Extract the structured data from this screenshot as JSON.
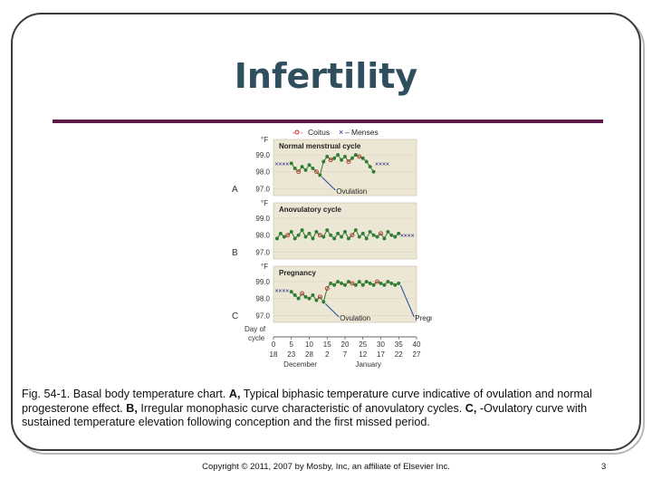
{
  "slide": {
    "title": "Infertility",
    "caption": {
      "prefix": "Fig. 54-1. Basal body temperature chart.",
      "a_label": "A,",
      "a_text": "Typical biphasic temperature curve indicative of ovulation and normal progesterone effect.",
      "b_label": "B,",
      "b_text": "Irregular monophasic curve characteristic of anovulatory cycles.",
      "c_label": "C,",
      "c_text": "-Ovulatory curve with sustained temperature elevation following conception and the first missed period."
    },
    "copyright": "Copyright © 2011, 2007 by Mosby, Inc, an affiliate of Elsevier Inc.",
    "page_number": "3",
    "colors": {
      "title": "#2f4f5f",
      "rule": "#5b1a48",
      "panel": "#ece6d4",
      "line": "#2e7d32",
      "coitus": "#c62828",
      "menses": "#1a237e",
      "arrow": "#1f4e9a"
    }
  },
  "chart_data": {
    "type": "line",
    "legend": {
      "coitus": "Coitus",
      "menses": "Menses",
      "coitus_symbol": "o",
      "menses_symbol": "×"
    },
    "ylabel": "°F",
    "yticks": [
      "99.0",
      "98.0",
      "97.0"
    ],
    "ylim": [
      96.8,
      99.7
    ],
    "xlim": [
      0,
      40
    ],
    "x_axis_label_line1": "Day of",
    "x_axis_label_line2": "cycle",
    "xticks": [
      "0",
      "5",
      "10",
      "15",
      "20",
      "25",
      "30",
      "35",
      "40"
    ],
    "date_ticks": [
      "18",
      "23",
      "28",
      "2",
      "7",
      "12",
      "17",
      "22",
      "27"
    ],
    "months": [
      "December",
      "January"
    ],
    "panels": [
      {
        "letter": "A",
        "title": "Normal menstrual cycle",
        "annotations": [
          {
            "text": "Ovulation",
            "day": 13
          }
        ],
        "menses_marks": [
          {
            "day_start": 1,
            "day_end": 4,
            "temp": 98.5
          },
          {
            "day_start": 29,
            "day_end": 32,
            "temp": 98.5
          }
        ],
        "coitus_days": [
          7,
          12,
          16,
          21,
          24
        ],
        "days": [
          5,
          6,
          7,
          8,
          9,
          10,
          11,
          12,
          13,
          14,
          15,
          16,
          17,
          18,
          19,
          20,
          21,
          22,
          23,
          24,
          25,
          26,
          27,
          28
        ],
        "temps": [
          98.5,
          98.2,
          98.0,
          98.3,
          98.1,
          98.4,
          98.2,
          98.0,
          97.8,
          98.6,
          98.9,
          98.7,
          98.8,
          99.0,
          98.7,
          98.9,
          98.6,
          98.8,
          99.0,
          98.9,
          98.8,
          98.6,
          98.3,
          98.0
        ]
      },
      {
        "letter": "B",
        "title": "Anovulatory cycle",
        "annotations": [],
        "menses_marks": [
          {
            "day_start": 36,
            "day_end": 39,
            "temp": 98.0
          }
        ],
        "coitus_days": [
          4,
          13,
          22,
          30
        ],
        "days": [
          1,
          2,
          3,
          4,
          5,
          6,
          7,
          8,
          9,
          10,
          11,
          12,
          13,
          14,
          15,
          16,
          17,
          18,
          19,
          20,
          21,
          22,
          23,
          24,
          25,
          26,
          27,
          28,
          29,
          30,
          31,
          32,
          33,
          34,
          35
        ],
        "temps": [
          97.8,
          98.1,
          97.9,
          98.0,
          98.2,
          97.8,
          98.0,
          98.3,
          97.9,
          98.1,
          97.8,
          98.2,
          98.0,
          97.9,
          98.3,
          98.0,
          97.8,
          98.1,
          97.9,
          98.2,
          97.8,
          98.0,
          98.3,
          97.9,
          98.1,
          97.8,
          98.2,
          98.0,
          97.9,
          98.1,
          97.8,
          98.2,
          98.0,
          97.9,
          98.1
        ]
      },
      {
        "letter": "C",
        "title": "Pregnancy",
        "annotations": [
          {
            "text": "Ovulation",
            "day": 14
          },
          {
            "text": "Pregnancy",
            "day": 35
          }
        ],
        "menses_marks": [
          {
            "day_start": 1,
            "day_end": 4,
            "temp": 98.5
          }
        ],
        "coitus_days": [
          8,
          13,
          15,
          22,
          29
        ],
        "days": [
          5,
          6,
          7,
          8,
          9,
          10,
          11,
          12,
          13,
          14,
          15,
          16,
          17,
          18,
          19,
          20,
          21,
          22,
          23,
          24,
          25,
          26,
          27,
          28,
          29,
          30,
          31,
          32,
          33,
          34,
          35
        ],
        "temps": [
          98.4,
          98.2,
          98.0,
          98.3,
          98.1,
          98.0,
          98.2,
          97.9,
          98.1,
          97.8,
          98.6,
          98.9,
          98.8,
          99.0,
          98.9,
          98.8,
          99.0,
          98.9,
          98.8,
          99.0,
          98.8,
          99.0,
          98.9,
          98.8,
          99.0,
          98.9,
          98.8,
          99.0,
          98.9,
          98.8,
          98.9
        ]
      }
    ]
  }
}
